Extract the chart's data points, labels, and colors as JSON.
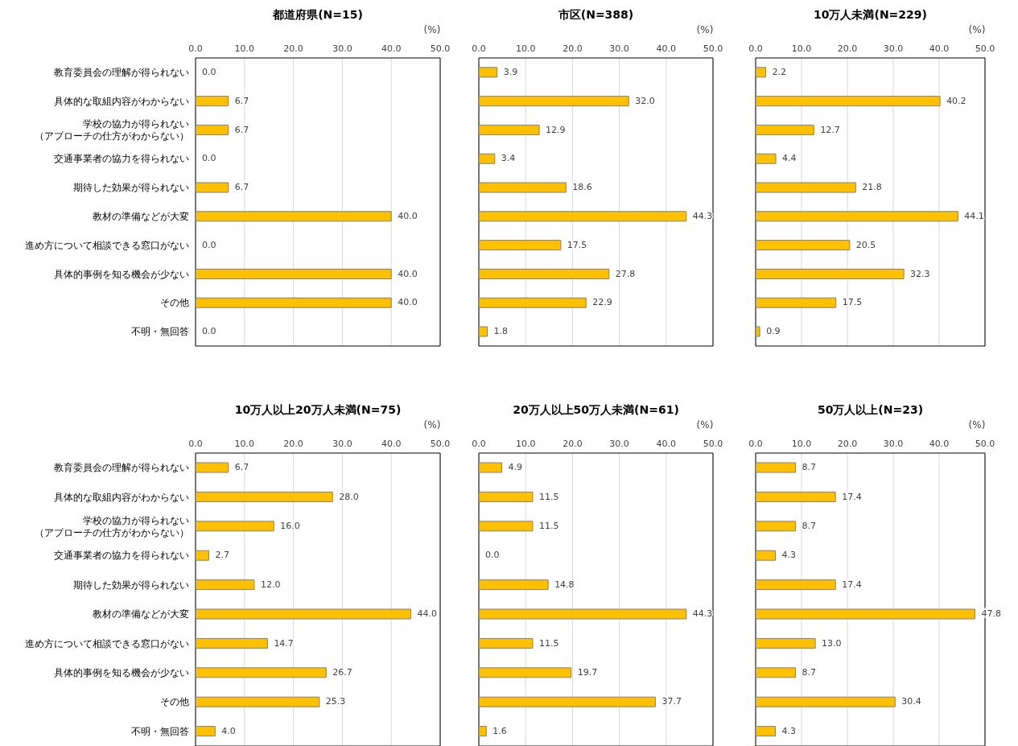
{
  "chart_data": [
    {
      "type": "bar",
      "orientation": "horizontal",
      "title": "都道府県(N=15)",
      "xlabel": "(%)",
      "categories": [
        "教育委員会の理解が得られない",
        "具体的な取組内容がわからない",
        "学校の協力が得られない（アプローチの仕方がわからない）",
        "交通事業者の協力を得られない",
        "期待した効果が得られない",
        "教材の準備などが大変",
        "進め方について相談できる窓口がない",
        "具体的事例を知る機会が少ない",
        "その他",
        "不明・無回答"
      ],
      "values": [
        0.0,
        6.7,
        6.7,
        0.0,
        6.7,
        40.0,
        0.0,
        40.0,
        40.0,
        0.0
      ],
      "value_labels": [
        "0.0",
        "6.7",
        "6.7",
        "0.0",
        "6.7",
        "40.0",
        "0.0",
        "40.0",
        "40.0",
        "0.0"
      ],
      "color": "#ffc000",
      "xlim": [
        0,
        50
      ],
      "xticks": [
        {
          "value": 0,
          "label": "0.0"
        },
        {
          "value": 10,
          "label": "10.0"
        },
        {
          "value": 20,
          "label": "20.0"
        },
        {
          "value": 30,
          "label": "30.0"
        },
        {
          "value": 40,
          "label": "40.0"
        },
        {
          "value": 50,
          "label": "50.0"
        }
      ],
      "grid": "x"
    },
    {
      "type": "bar",
      "orientation": "horizontal",
      "title": "市区(N=388)",
      "xlabel": "(%)",
      "categories": [
        "教育委員会の理解が得られない",
        "具体的な取組内容がわからない",
        "学校の協力が得られない（アプローチの仕方がわからない）",
        "交通事業者の協力を得られない",
        "期待した効果が得られない",
        "教材の準備などが大変",
        "進め方について相談できる窓口がない",
        "具体的事例を知る機会が少ない",
        "その他",
        "不明・無回答"
      ],
      "values": [
        3.9,
        32.0,
        12.9,
        3.4,
        18.6,
        44.3,
        17.5,
        27.8,
        22.9,
        1.8
      ],
      "value_labels": [
        "3.9",
        "32.0",
        "12.9",
        "3.4",
        "18.6",
        "44.3",
        "17.5",
        "27.8",
        "22.9",
        "1.8"
      ],
      "color": "#ffc000",
      "xlim": [
        0,
        50
      ],
      "xticks": [
        {
          "value": 0,
          "label": "0.0"
        },
        {
          "value": 10,
          "label": "10.0"
        },
        {
          "value": 20,
          "label": "20.0"
        },
        {
          "value": 30,
          "label": "30.0"
        },
        {
          "value": 40,
          "label": "40.0"
        },
        {
          "value": 50,
          "label": "50.0"
        }
      ],
      "grid": "x",
      "tick_labels": "x"
    },
    {
      "type": "bar",
      "orientation": "horizontal",
      "title": "10万人未満(N=229)",
      "xlabel": "(%)",
      "categories": [
        "教育委員会の理解が得られない",
        "具体的な取組内容がわからない",
        "学校の協力が得られない（アプローチの仕方がわからない）",
        "交通事業者の協力を得られない",
        "期待した効果が得られない",
        "教材の準備などが大変",
        "進め方について相談できる窓口がない",
        "具体的事例を知る機会が少ない",
        "その他",
        "不明・無回答"
      ],
      "values": [
        2.2,
        40.2,
        12.7,
        4.4,
        21.8,
        44.1,
        20.5,
        32.3,
        17.5,
        0.9
      ],
      "value_labels": [
        "2.2",
        "40.2",
        "12.7",
        "4.4",
        "21.8",
        "44.1",
        "20.5",
        "32.3",
        "17.5",
        "0.9"
      ],
      "color": "#ffc000",
      "xlim": [
        0,
        50
      ],
      "xticks": [
        {
          "value": 0,
          "label": "0.0"
        },
        {
          "value": 10,
          "label": "10.0"
        },
        {
          "value": 20,
          "label": "20.0"
        },
        {
          "value": 30,
          "label": "30.0"
        },
        {
          "value": 40,
          "label": "40.0"
        },
        {
          "value": 50,
          "label": "50.0"
        }
      ],
      "grid": "x",
      "tick_labels": "x"
    },
    {
      "type": "bar",
      "orientation": "horizontal",
      "title": "10万人以上20万人未満(N=75)",
      "xlabel": "(%)",
      "categories": [
        "教育委員会の理解が得られない",
        "具体的な取組内容がわからない",
        "学校の協力が得られない（アプローチの仕方がわからない）",
        "交通事業者の協力を得られない",
        "期待した効果が得られない",
        "教材の準備などが大変",
        "進め方について相談できる窓口がない",
        "具体的事例を知る機会が少ない",
        "その他",
        "不明・無回答"
      ],
      "values": [
        6.7,
        28.0,
        16.0,
        2.7,
        12.0,
        44.0,
        14.7,
        26.7,
        25.3,
        4.0
      ],
      "value_labels": [
        "6.7",
        "28.0",
        "16.0",
        "2.7",
        "12.0",
        "44.0",
        "14.7",
        "26.7",
        "25.3",
        "4.0"
      ],
      "color": "#ffc000",
      "xlim": [
        0,
        50
      ],
      "xticks": [
        {
          "value": 0,
          "label": "0.0"
        },
        {
          "value": 10,
          "label": "10.0"
        },
        {
          "value": 20,
          "label": "20.0"
        },
        {
          "value": 30,
          "label": "30.0"
        },
        {
          "value": 40,
          "label": "40.0"
        },
        {
          "value": 50,
          "label": "50.0"
        }
      ],
      "grid": "x"
    },
    {
      "type": "bar",
      "orientation": "horizontal",
      "title": "20万人以上50万人未満(N=61)",
      "xlabel": "(%)",
      "categories": [
        "教育委員会の理解が得られない",
        "具体的な取組内容がわからない",
        "学校の協力が得られない（アプローチの仕方がわからない）",
        "交通事業者の協力を得られない",
        "期待した効果が得られない",
        "教材の準備などが大変",
        "進め方について相談できる窓口がない",
        "具体的事例を知る機会が少ない",
        "その他",
        "不明・無回答"
      ],
      "values": [
        4.9,
        11.5,
        11.5,
        0.0,
        14.8,
        44.3,
        11.5,
        19.7,
        37.7,
        1.6
      ],
      "value_labels": [
        "4.9",
        "11.5",
        "11.5",
        "0.0",
        "14.8",
        "44.3",
        "11.5",
        "19.7",
        "37.7",
        "1.6"
      ],
      "color": "#ffc000",
      "xlim": [
        0,
        50
      ],
      "xticks": [
        {
          "value": 0,
          "label": "0.0"
        },
        {
          "value": 10,
          "label": "10.0"
        },
        {
          "value": 20,
          "label": "20.0"
        },
        {
          "value": 30,
          "label": "30.0"
        },
        {
          "value": 40,
          "label": "40.0"
        },
        {
          "value": 50,
          "label": "50.0"
        }
      ],
      "grid": "x",
      "tick_labels": "x"
    },
    {
      "type": "bar",
      "orientation": "horizontal",
      "title": "50万人以上(N=23)",
      "xlabel": "(%)",
      "categories": [
        "教育委員会の理解が得られない",
        "具体的な取組内容がわからない",
        "学校の協力が得られない（アプローチの仕方がわからない）",
        "交通事業者の協力を得られない",
        "期待した効果が得られない",
        "教材の準備などが大変",
        "進め方について相談できる窓口がない",
        "具体的事例を知る機会が少ない",
        "その他",
        "不明・無回答"
      ],
      "values": [
        8.7,
        17.4,
        8.7,
        4.3,
        17.4,
        47.8,
        13.0,
        8.7,
        30.4,
        4.3
      ],
      "value_labels": [
        "8.7",
        "17.4",
        "8.7",
        "4.3",
        "17.4",
        "47.8",
        "13.0",
        "8.7",
        "30.4",
        "4.3"
      ],
      "color": "#ffc000",
      "xlim": [
        0,
        50
      ],
      "xticks": [
        {
          "value": 0,
          "label": "0.0"
        },
        {
          "value": 10,
          "label": "10.0"
        },
        {
          "value": 20,
          "label": "20.0"
        },
        {
          "value": 30,
          "label": "30.0"
        },
        {
          "value": 40,
          "label": "40.0"
        },
        {
          "value": 50,
          "label": "50.0"
        }
      ],
      "grid": "x",
      "tick_labels": "x"
    }
  ]
}
